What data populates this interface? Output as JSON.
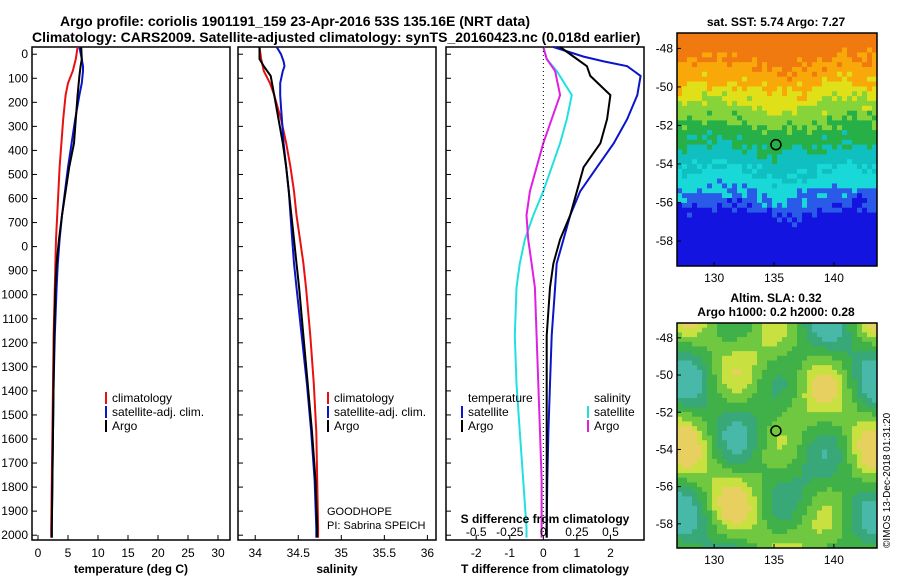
{
  "header": {
    "line1": "Argo profile: coriolis 1901191_159 23-Apr-2016 53S 135.16E (NRT data)",
    "line2": "Climatology: CARS2009. Satellite-adjusted climatology: synTS_20160423.nc (0.018d earlier)"
  },
  "colors": {
    "climatology": "#e8110f",
    "satellite": "#0a14c8",
    "argo": "#000000",
    "sat_salinity": "#22e0e0",
    "argo_salinity": "#e020e0"
  },
  "depth_ticks": [
    "0",
    "100",
    "200",
    "300",
    "400",
    "500",
    "600",
    "700",
    "0",
    "900",
    "1000",
    "1100",
    "1200",
    "1300",
    "1400",
    "1500",
    "1600",
    "1700",
    "1800",
    "1900",
    "2000"
  ],
  "chart_data": [
    {
      "type": "line",
      "xlabel": "temperature (deg C)",
      "xlim": [
        -1,
        32
      ],
      "ylim": [
        2050,
        0
      ],
      "xticks": [
        "0",
        "5",
        "10",
        "15",
        "20",
        "25",
        "30"
      ],
      "legend": [
        "climatology",
        "satellite-adj. clim.",
        "Argo"
      ],
      "series": [
        {
          "name": "climatology",
          "color": "#e8110f",
          "depth": [
            0,
            50,
            100,
            150,
            200,
            300,
            400,
            500,
            600,
            700,
            800,
            900,
            1000,
            1200,
            1400,
            1600,
            1800,
            2000,
            2040
          ],
          "values": [
            6.6,
            6.3,
            5.8,
            5.0,
            4.6,
            4.2,
            3.9,
            3.6,
            3.4,
            3.2,
            3.0,
            2.9,
            2.8,
            2.6,
            2.5,
            2.4,
            2.3,
            2.2,
            2.2
          ]
        },
        {
          "name": "satellite-adj. clim.",
          "color": "#0a14c8",
          "depth": [
            0,
            50,
            80,
            100,
            150,
            200,
            300,
            400,
            500,
            600,
            700,
            800,
            900,
            1000,
            1200,
            1400,
            1600,
            1800,
            2000,
            2040
          ],
          "values": [
            6.9,
            7.3,
            7.5,
            7.5,
            7.3,
            6.9,
            6.2,
            5.6,
            5.0,
            4.5,
            4.0,
            3.6,
            3.3,
            3.1,
            2.8,
            2.6,
            2.5,
            2.4,
            2.3,
            2.3
          ]
        },
        {
          "name": "Argo",
          "color": "#000000",
          "depth": [
            0,
            50,
            80,
            120,
            200,
            300,
            400,
            500,
            600,
            700,
            800,
            900,
            1000,
            1200,
            1400,
            1600,
            1800,
            2000,
            2040
          ],
          "values": [
            7.2,
            7.3,
            7.1,
            6.9,
            6.6,
            6.3,
            6.0,
            5.2,
            4.6,
            4.0,
            3.5,
            3.1,
            2.9,
            2.7,
            2.6,
            2.5,
            2.4,
            2.3,
            2.3
          ]
        }
      ]
    },
    {
      "type": "line",
      "xlabel": "salinity",
      "xlim": [
        33.8,
        36.1
      ],
      "ylim": [
        2050,
        0
      ],
      "xticks": [
        "34",
        "34.5",
        "35",
        "35.5",
        "36"
      ],
      "legend": [
        "climatology",
        "satellite-adj. clim.",
        "Argo"
      ],
      "series": [
        {
          "name": "climatology",
          "color": "#e8110f",
          "depth": [
            0,
            50,
            100,
            150,
            200,
            300,
            400,
            500,
            600,
            700,
            800,
            900,
            1000,
            1200,
            1400,
            1600,
            1800,
            2000,
            2040
          ],
          "values": [
            34.05,
            34.07,
            34.1,
            34.17,
            34.22,
            34.3,
            34.36,
            34.41,
            34.45,
            34.48,
            34.52,
            34.56,
            34.59,
            34.64,
            34.68,
            34.71,
            34.72,
            34.73,
            34.73
          ]
        },
        {
          "name": "satellite-adj. clim.",
          "color": "#0a14c8",
          "depth": [
            0,
            30,
            60,
            80,
            100,
            150,
            200,
            250,
            300,
            400,
            500,
            600,
            700,
            800,
            900,
            1000,
            1200,
            1400,
            1600,
            1800,
            2000,
            2040
          ],
          "values": [
            34.25,
            34.3,
            34.33,
            34.34,
            34.32,
            34.29,
            34.29,
            34.3,
            34.31,
            34.33,
            34.36,
            34.39,
            34.41,
            34.43,
            34.45,
            34.48,
            34.54,
            34.6,
            34.65,
            34.69,
            34.71,
            34.71
          ]
        },
        {
          "name": "Argo",
          "color": "#000000",
          "depth": [
            0,
            50,
            80,
            120,
            200,
            300,
            400,
            500,
            600,
            700,
            800,
            900,
            1000,
            1200,
            1400,
            1600,
            1800,
            2000,
            2040
          ],
          "values": [
            34.05,
            34.05,
            34.1,
            34.18,
            34.22,
            34.27,
            34.32,
            34.36,
            34.39,
            34.42,
            34.45,
            34.48,
            34.51,
            34.56,
            34.61,
            34.66,
            34.7,
            34.72,
            34.72
          ]
        }
      ]
    },
    {
      "type": "line",
      "xlabel": "T difference from climatology",
      "xlabel2": "S difference from climatology",
      "xlim": [
        -2.9,
        3.0
      ],
      "ylim": [
        2050,
        0
      ],
      "xticks": [
        "-2",
        "-1",
        "0",
        "1",
        "2"
      ],
      "xticks_top": [
        "-0.5",
        "-0.25",
        "0",
        "0.25",
        "0.5"
      ],
      "legend_t_title": "temperature",
      "legend_s_title": "salinity",
      "legend_t": [
        "satellite",
        "Argo"
      ],
      "legend_s": [
        "satellite",
        "Argo"
      ],
      "series": [
        {
          "name": "temperature satellite",
          "color": "#0a14c8",
          "depth": [
            0,
            40,
            60,
            80,
            120,
            200,
            300,
            400,
            500,
            600,
            700,
            800,
            900,
            1000,
            1200,
            1400,
            1600,
            1800,
            2000,
            2040
          ],
          "values": [
            0.3,
            1.2,
            1.8,
            2.5,
            2.9,
            2.8,
            2.5,
            2.1,
            1.6,
            1.1,
            0.8,
            0.6,
            0.4,
            0.35,
            0.25,
            0.2,
            0.15,
            0.12,
            0.1,
            0.1
          ]
        },
        {
          "name": "temperature Argo",
          "color": "#000000",
          "depth": [
            0,
            50,
            80,
            120,
            200,
            300,
            400,
            500,
            600,
            700,
            800,
            900,
            1000,
            1200,
            1400,
            1600,
            1800,
            2000,
            2040
          ],
          "values": [
            0.5,
            1.0,
            1.3,
            1.4,
            2.0,
            1.9,
            1.7,
            1.2,
            1.0,
            0.8,
            0.5,
            0.3,
            0.2,
            0.1,
            0.1,
            0.1,
            0.1,
            0.1,
            0.1
          ]
        },
        {
          "name": "salinity satellite",
          "color": "#22e0e0",
          "depth": [
            0,
            50,
            100,
            200,
            300,
            400,
            500,
            600,
            700,
            800,
            900,
            1000,
            1200,
            1400,
            1600,
            1800,
            2000,
            2040
          ],
          "values": [
            0.0,
            0.1,
            0.4,
            0.85,
            0.7,
            0.5,
            0.25,
            0.0,
            -0.3,
            -0.55,
            -0.7,
            -0.8,
            -0.85,
            -0.8,
            -0.7,
            -0.6,
            -0.5,
            -0.5
          ]
        },
        {
          "name": "salinity Argo",
          "color": "#e020e0",
          "depth": [
            0,
            50,
            100,
            200,
            300,
            400,
            500,
            600,
            700,
            800,
            900,
            1000,
            1200,
            1400,
            1600,
            1800,
            2000,
            2040
          ],
          "values": [
            0.0,
            0.1,
            0.35,
            0.5,
            0.25,
            0.0,
            -0.2,
            -0.4,
            -0.5,
            -0.45,
            -0.35,
            -0.25,
            -0.2,
            -0.15,
            -0.1,
            -0.05,
            -0.05,
            -0.05
          ]
        }
      ]
    },
    {
      "type": "heatmap",
      "title": "sat. SST: 5.74 Argo: 7.27",
      "xticks": [
        "130",
        "135",
        "140"
      ],
      "yticks": [
        "-48",
        "-50",
        "-52",
        "-54",
        "-56",
        "-58"
      ],
      "marker": {
        "lon": 135.16,
        "lat": -53
      }
    },
    {
      "type": "heatmap",
      "title": "Altim. SLA: 0.32",
      "title2": "Argo h1000: 0.2 h2000: 0.28",
      "xticks": [
        "130",
        "135",
        "140"
      ],
      "yticks": [
        "-48",
        "-50",
        "-52",
        "-54",
        "-56",
        "-58"
      ],
      "marker": {
        "lon": 135.16,
        "lat": -53
      }
    }
  ],
  "annotations": {
    "program": "GOODHOPE",
    "pi": "PI: Sabrina SPEICH",
    "credit": "©IMOS 13-Dec-2018 01:31:20"
  }
}
